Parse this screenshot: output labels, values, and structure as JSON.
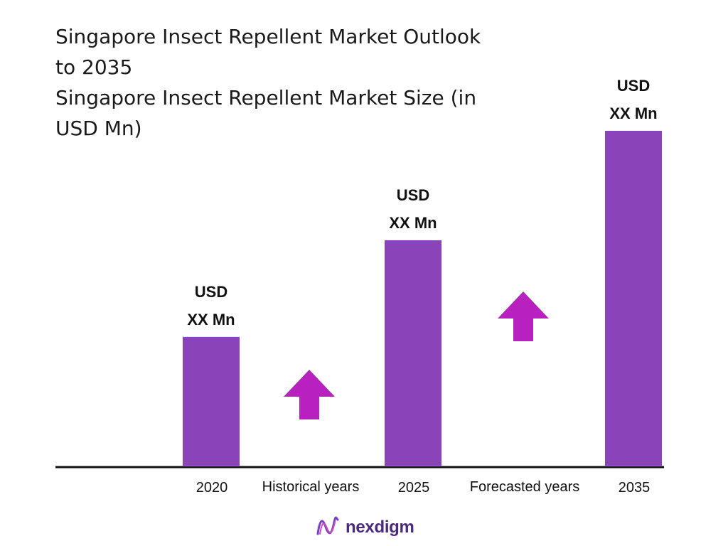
{
  "header": {
    "title_line1": "Singapore Insect Repellent Market Outlook",
    "title_line2": "to 2035",
    "subtitle_line1": "Singapore Insect Repellent Market Size (in",
    "subtitle_line2": "USD Mn)"
  },
  "chart_data": {
    "type": "bar",
    "categories": [
      "2020",
      "2025",
      "2035"
    ],
    "values": [
      1,
      1.75,
      2.6
    ],
    "value_labels": [
      [
        "USD",
        "XX Mn"
      ],
      [
        "USD",
        "XX Mn"
      ],
      [
        "USD",
        "XX Mn"
      ]
    ],
    "period_labels": [
      "Historical years",
      "Forecasted years"
    ],
    "bar_color": "#8a43b8",
    "arrow_color": "#b820c0",
    "axis_color": "#111111",
    "ylim": [
      0,
      2.6
    ],
    "grid": false,
    "legend": "none"
  },
  "brand": {
    "name": "nexdigm",
    "icon": "nexdigm-logo-icon",
    "color": "#4a2a7a"
  }
}
